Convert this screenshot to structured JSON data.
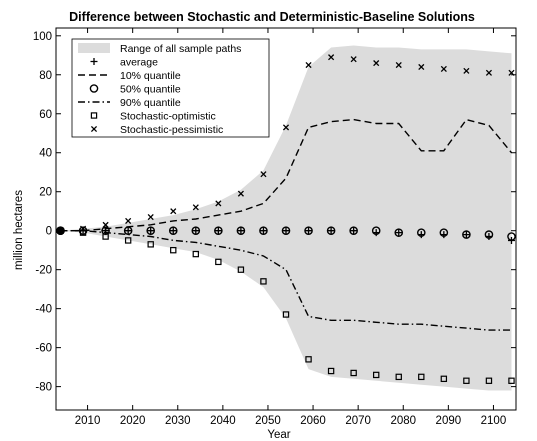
{
  "chart_data": {
    "type": "line",
    "title": "Difference between Stochastic and Deterministic-Baseline Solutions",
    "xlabel": "Year",
    "ylabel": "million hectares",
    "xlim": [
      2003,
      2105
    ],
    "ylim": [
      -92,
      104
    ],
    "xticks": [
      2010,
      2020,
      2030,
      2040,
      2050,
      2060,
      2070,
      2080,
      2090,
      2100
    ],
    "yticks": [
      100,
      80,
      60,
      40,
      20,
      0,
      -20,
      -40,
      -60,
      -80
    ],
    "grid": false,
    "legend_position": "top-left",
    "colors": {
      "band": "#dcdcdc",
      "line": "#000000"
    },
    "band": {
      "name": "Range of all sample paths",
      "x": [
        2004,
        2009,
        2014,
        2019,
        2024,
        2029,
        2034,
        2039,
        2044,
        2049,
        2054,
        2059,
        2064,
        2069,
        2074,
        2079,
        2084,
        2089,
        2094,
        2099,
        2104
      ],
      "upper": [
        0,
        1,
        2,
        4,
        6,
        8,
        11,
        15,
        21,
        31,
        54,
        84,
        94,
        95,
        94,
        94,
        93,
        93,
        93,
        92,
        91
      ],
      "lower": [
        0,
        -1,
        -3,
        -5,
        -7,
        -9,
        -11,
        -15,
        -21,
        -29,
        -45,
        -71,
        -75,
        -76,
        -77,
        -78,
        -79,
        -80,
        -81,
        -82,
        -82
      ]
    },
    "series": [
      {
        "name": "average",
        "marker": "plus",
        "x": [
          2004,
          2009,
          2014,
          2019,
          2024,
          2029,
          2034,
          2039,
          2044,
          2049,
          2054,
          2059,
          2064,
          2069,
          2074,
          2079,
          2084,
          2089,
          2094,
          2099,
          2104
        ],
        "values": [
          0,
          0,
          0,
          0,
          0,
          0,
          0,
          0,
          0,
          0,
          0,
          0,
          0,
          0,
          -1,
          -1,
          -2,
          -2,
          -2,
          -3,
          -5
        ]
      },
      {
        "name": "10% quantile",
        "line": "dashed",
        "x": [
          2004,
          2009,
          2014,
          2019,
          2024,
          2029,
          2034,
          2039,
          2044,
          2049,
          2054,
          2059,
          2064,
          2069,
          2074,
          2079,
          2084,
          2089,
          2094,
          2099,
          2104
        ],
        "values": [
          0,
          0,
          1,
          2,
          3,
          5,
          6,
          8,
          10,
          14,
          27,
          53,
          56,
          57,
          55,
          55,
          41,
          41,
          57,
          54,
          40
        ]
      },
      {
        "name": "50% quantile",
        "marker": "circle",
        "x": [
          2004,
          2009,
          2014,
          2019,
          2024,
          2029,
          2034,
          2039,
          2044,
          2049,
          2054,
          2059,
          2064,
          2069,
          2074,
          2079,
          2084,
          2089,
          2094,
          2099,
          2104
        ],
        "values": [
          0,
          0,
          0,
          0,
          0,
          0,
          0,
          0,
          0,
          0,
          0,
          0,
          0,
          0,
          0,
          -1,
          -1,
          -1,
          -2,
          -2,
          -3
        ]
      },
      {
        "name": "90% quantile",
        "line": "dashdot",
        "x": [
          2004,
          2009,
          2014,
          2019,
          2024,
          2029,
          2034,
          2039,
          2044,
          2049,
          2054,
          2059,
          2064,
          2069,
          2074,
          2079,
          2084,
          2089,
          2094,
          2099,
          2104
        ],
        "values": [
          0,
          0,
          -1,
          -2,
          -3,
          -5,
          -6,
          -8,
          -10,
          -13,
          -20,
          -44,
          -46,
          -46,
          -47,
          -48,
          -48,
          -49,
          -50,
          -51,
          -51
        ]
      },
      {
        "name": "Stochastic-optimistic",
        "marker": "square",
        "x": [
          2004,
          2009,
          2014,
          2019,
          2024,
          2029,
          2034,
          2039,
          2044,
          2049,
          2054,
          2059,
          2064,
          2069,
          2074,
          2079,
          2084,
          2089,
          2094,
          2099,
          2104
        ],
        "values": [
          0,
          -1,
          -3,
          -5,
          -7,
          -10,
          -12,
          -16,
          -20,
          -26,
          -43,
          -66,
          -72,
          -73,
          -74,
          -75,
          -75,
          -76,
          -77,
          -77,
          -77
        ]
      },
      {
        "name": "Stochastic-pessimistic",
        "marker": "x",
        "x": [
          2004,
          2009,
          2014,
          2019,
          2024,
          2029,
          2034,
          2039,
          2044,
          2049,
          2054,
          2059,
          2064,
          2069,
          2074,
          2079,
          2084,
          2089,
          2094,
          2099,
          2104
        ],
        "values": [
          0,
          1,
          3,
          5,
          7,
          10,
          12,
          14,
          19,
          29,
          53,
          85,
          89,
          88,
          86,
          85,
          84,
          83,
          82,
          81,
          81
        ]
      }
    ],
    "start_marker": {
      "x": 2004,
      "y": 0
    }
  }
}
